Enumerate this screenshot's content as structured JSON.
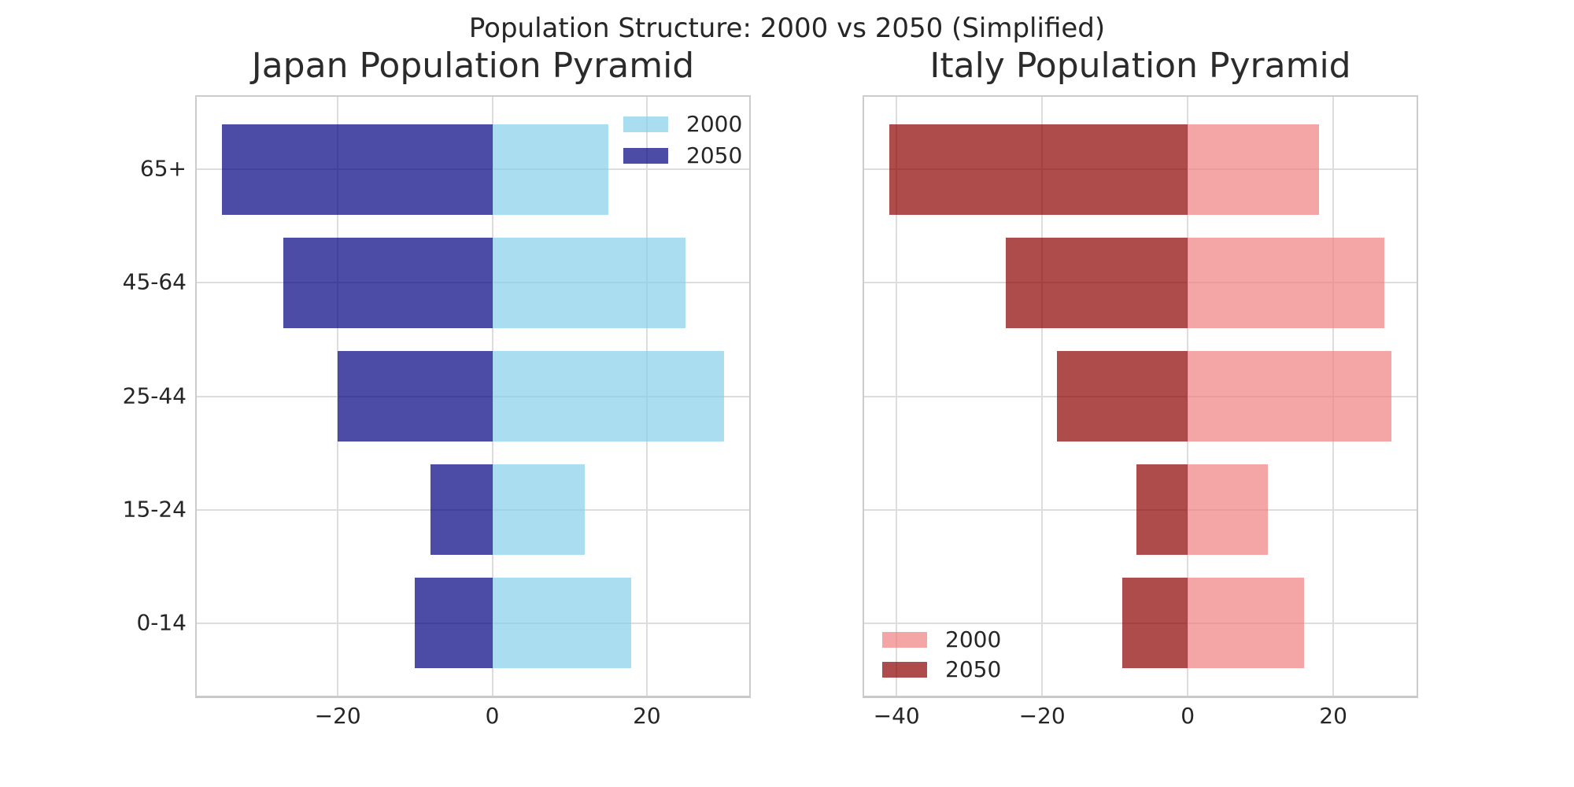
{
  "suptitle": "Population Structure: 2000 vs 2050 (Simplified)",
  "text_color": "#262626",
  "grid_color": "#dddddd",
  "spine_color": "#cccccc",
  "chart_data": [
    {
      "type": "bar",
      "orientation": "horizontal",
      "title": "Japan Population Pyramid",
      "categories": [
        "0-14",
        "15-24",
        "25-44",
        "45-64",
        "65+"
      ],
      "series": [
        {
          "name": "2000",
          "color": "rgba(135,206,235,0.7)",
          "color_hex": "#ABDDF1",
          "values": [
            18,
            12,
            30,
            25,
            15
          ]
        },
        {
          "name": "2050",
          "color": "rgba(0,0,128,0.7)",
          "color_hex": "#4D4DA6",
          "values": [
            -10,
            -8,
            -20,
            -27,
            -35
          ]
        }
      ],
      "xticks": [
        {
          "v": -20,
          "label": "−20"
        },
        {
          "v": 0,
          "label": "0"
        },
        {
          "v": 20,
          "label": "20"
        }
      ],
      "xlim": [
        -38.25,
        33.25
      ],
      "ylim": [
        -0.64,
        4.64
      ],
      "bar_height": 0.8,
      "grid": true,
      "legend_position": "upper right",
      "show_y_labels": true
    },
    {
      "type": "bar",
      "orientation": "horizontal",
      "title": "Italy Population Pyramid",
      "categories": [
        "0-14",
        "15-24",
        "25-44",
        "45-64",
        "65+"
      ],
      "series": [
        {
          "name": "2000",
          "color": "rgba(240,128,128,0.7)",
          "color_hex": "#F5A2A2",
          "values": [
            16,
            11,
            28,
            27,
            18
          ]
        },
        {
          "name": "2050",
          "color": "rgba(139,0,0,0.7)",
          "color_hex": "#AE4D4D",
          "values": [
            -9,
            -7,
            -18,
            -25,
            -41
          ]
        }
      ],
      "xticks": [
        {
          "v": -40,
          "label": "−40"
        },
        {
          "v": -20,
          "label": "−20"
        },
        {
          "v": 0,
          "label": "0"
        },
        {
          "v": 20,
          "label": "20"
        }
      ],
      "xlim": [
        -44.45,
        31.45
      ],
      "ylim": [
        -0.64,
        4.64
      ],
      "bar_height": 0.8,
      "grid": true,
      "legend_position": "lower left",
      "show_y_labels": false
    }
  ]
}
